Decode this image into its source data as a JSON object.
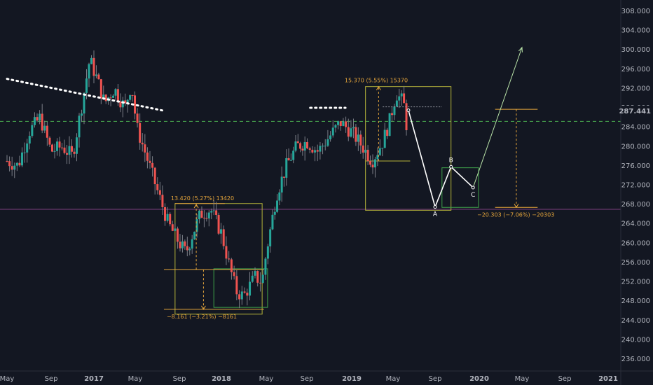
{
  "chart_data": {
    "type": "candlestick",
    "price_scale": {
      "min": 234,
      "max": 310,
      "ticks": [
        308,
        304,
        300,
        296,
        292,
        288,
        284,
        280,
        276,
        272,
        268,
        264,
        260,
        256,
        252,
        248,
        244,
        240,
        236
      ],
      "tick_labels": [
        "308.000",
        "304.000",
        "300.000",
        "296.000",
        "292.000",
        "288.000",
        "284.000",
        "280.000",
        "276.000",
        "272.000",
        "268.000",
        "264.000",
        "260.000",
        "256.000",
        "252.000",
        "248.000",
        "244.000",
        "240.000",
        "236.000"
      ],
      "current_price": 287.441,
      "current_price_label": "287.441"
    },
    "time_axis": {
      "start": "2016-05",
      "end": "2021-01",
      "labels": [
        {
          "label": "May",
          "date": "2016-05"
        },
        {
          "label": "Sep",
          "date": "2016-09"
        },
        {
          "label": "2017",
          "date": "2017-01"
        },
        {
          "label": "May",
          "date": "2017-05"
        },
        {
          "label": "Sep",
          "date": "2017-09"
        },
        {
          "label": "2018",
          "date": "2018-01"
        },
        {
          "label": "May",
          "date": "2018-05"
        },
        {
          "label": "Sep",
          "date": "2018-09"
        },
        {
          "label": "2019",
          "date": "2019-01"
        },
        {
          "label": "May",
          "date": "2019-05"
        },
        {
          "label": "Sep",
          "date": "2019-09"
        },
        {
          "label": "2020",
          "date": "2020-01"
        },
        {
          "label": "May",
          "date": "2020-05"
        },
        {
          "label": "Sep",
          "date": "2020-09"
        },
        {
          "label": "2021",
          "date": "2021-01"
        }
      ]
    },
    "price_path": [
      [
        "2016-05-01",
        277
      ],
      [
        "2016-06-01",
        276
      ],
      [
        "2016-07-01",
        283
      ],
      [
        "2016-08-01",
        286
      ],
      [
        "2016-09-01",
        279
      ],
      [
        "2016-10-01",
        280
      ],
      [
        "2016-11-01",
        278
      ],
      [
        "2016-12-01",
        290
      ],
      [
        "2016-12-20",
        298
      ],
      [
        "2017-01-10",
        294
      ],
      [
        "2017-02-01",
        289
      ],
      [
        "2017-03-01",
        292
      ],
      [
        "2017-04-01",
        288
      ],
      [
        "2017-04-20",
        293
      ],
      [
        "2017-05-05",
        284
      ],
      [
        "2017-06-01",
        278
      ],
      [
        "2017-07-01",
        271
      ],
      [
        "2017-08-01",
        264
      ],
      [
        "2017-09-01",
        260
      ],
      [
        "2017-09-20",
        258
      ],
      [
        "2017-10-10",
        262
      ],
      [
        "2017-11-01",
        266
      ],
      [
        "2017-12-01",
        267
      ],
      [
        "2018-01-01",
        262
      ],
      [
        "2018-01-20",
        256
      ],
      [
        "2018-02-10",
        250
      ],
      [
        "2018-03-01",
        249
      ],
      [
        "2018-04-01",
        253
      ],
      [
        "2018-04-20",
        252
      ],
      [
        "2018-05-01",
        258
      ],
      [
        "2018-06-01",
        270
      ],
      [
        "2018-07-01",
        276
      ],
      [
        "2018-08-01",
        280
      ],
      [
        "2018-09-01",
        281
      ],
      [
        "2018-10-01",
        279
      ],
      [
        "2018-11-01",
        282
      ],
      [
        "2018-12-01",
        285
      ],
      [
        "2019-01-01",
        283
      ],
      [
        "2019-02-01",
        280
      ],
      [
        "2019-03-01",
        277
      ],
      [
        "2019-04-01",
        281
      ],
      [
        "2019-04-20",
        285
      ],
      [
        "2019-05-10",
        291
      ],
      [
        "2019-06-01",
        289
      ],
      [
        "2019-06-10",
        284
      ]
    ],
    "projection_ABC": [
      {
        "date": "2019-06-15",
        "value": 287.5
      },
      {
        "date": "2019-09-01",
        "value": 267.5,
        "label": "A"
      },
      {
        "date": "2019-10-15",
        "value": 275.8,
        "label": "B"
      },
      {
        "date": "2019-12-15",
        "value": 271.5,
        "label": "C"
      },
      {
        "date": "2020-05-01",
        "value": 300.5
      }
    ],
    "measurements": [
      {
        "text": "13.420 (5.27%) 13420",
        "from": 254.5,
        "to": 268,
        "date": "2017-10-20",
        "color": "#e5a53b"
      },
      {
        "text": "−8.161 (−3.21%) −8161",
        "from": 254.5,
        "to": 246.3,
        "date": "2017-11-10",
        "color": "#e5a53b"
      },
      {
        "text": "15.370 (5.55%) 15370",
        "from": 277,
        "to": 292.4,
        "date": "2019-03-20",
        "color": "#e5a53b"
      },
      {
        "text": "−20.303 (−7.06%) −20303",
        "from": 287.7,
        "to": 267.4,
        "date": "2020-04-15",
        "color": "#e5a53b"
      }
    ],
    "horizontal_lines": [
      {
        "value": 285.2,
        "style": "dashed",
        "color": "#4caf50"
      },
      {
        "value": 267.0,
        "style": "solid",
        "color": "#7b3f7f"
      }
    ],
    "trendline_dotted": [
      {
        "date": "2016-05-01",
        "value": 294
      },
      {
        "date": "2017-07-20",
        "value": 287.4
      }
    ],
    "resistance_dotted": {
      "value": 288.0,
      "from": "2018-09-10",
      "to": "2018-12-15"
    },
    "boxes": [
      {
        "from": "2017-08-20",
        "to": "2018-04-20",
        "low": 245.3,
        "high": 268.2,
        "color": "#b5b33a"
      },
      {
        "from": "2017-12-10",
        "to": "2018-05-05",
        "low": 246.7,
        "high": 254.7,
        "color": "#3fa14a"
      },
      {
        "from": "2019-02-10",
        "to": "2019-10-15",
        "low": 266.8,
        "high": 292.4,
        "color": "#b5b33a"
      },
      {
        "from": "2019-09-20",
        "to": "2019-12-30",
        "low": 267.4,
        "high": 275.6,
        "color": "#3fa14a"
      }
    ],
    "grid": false
  }
}
